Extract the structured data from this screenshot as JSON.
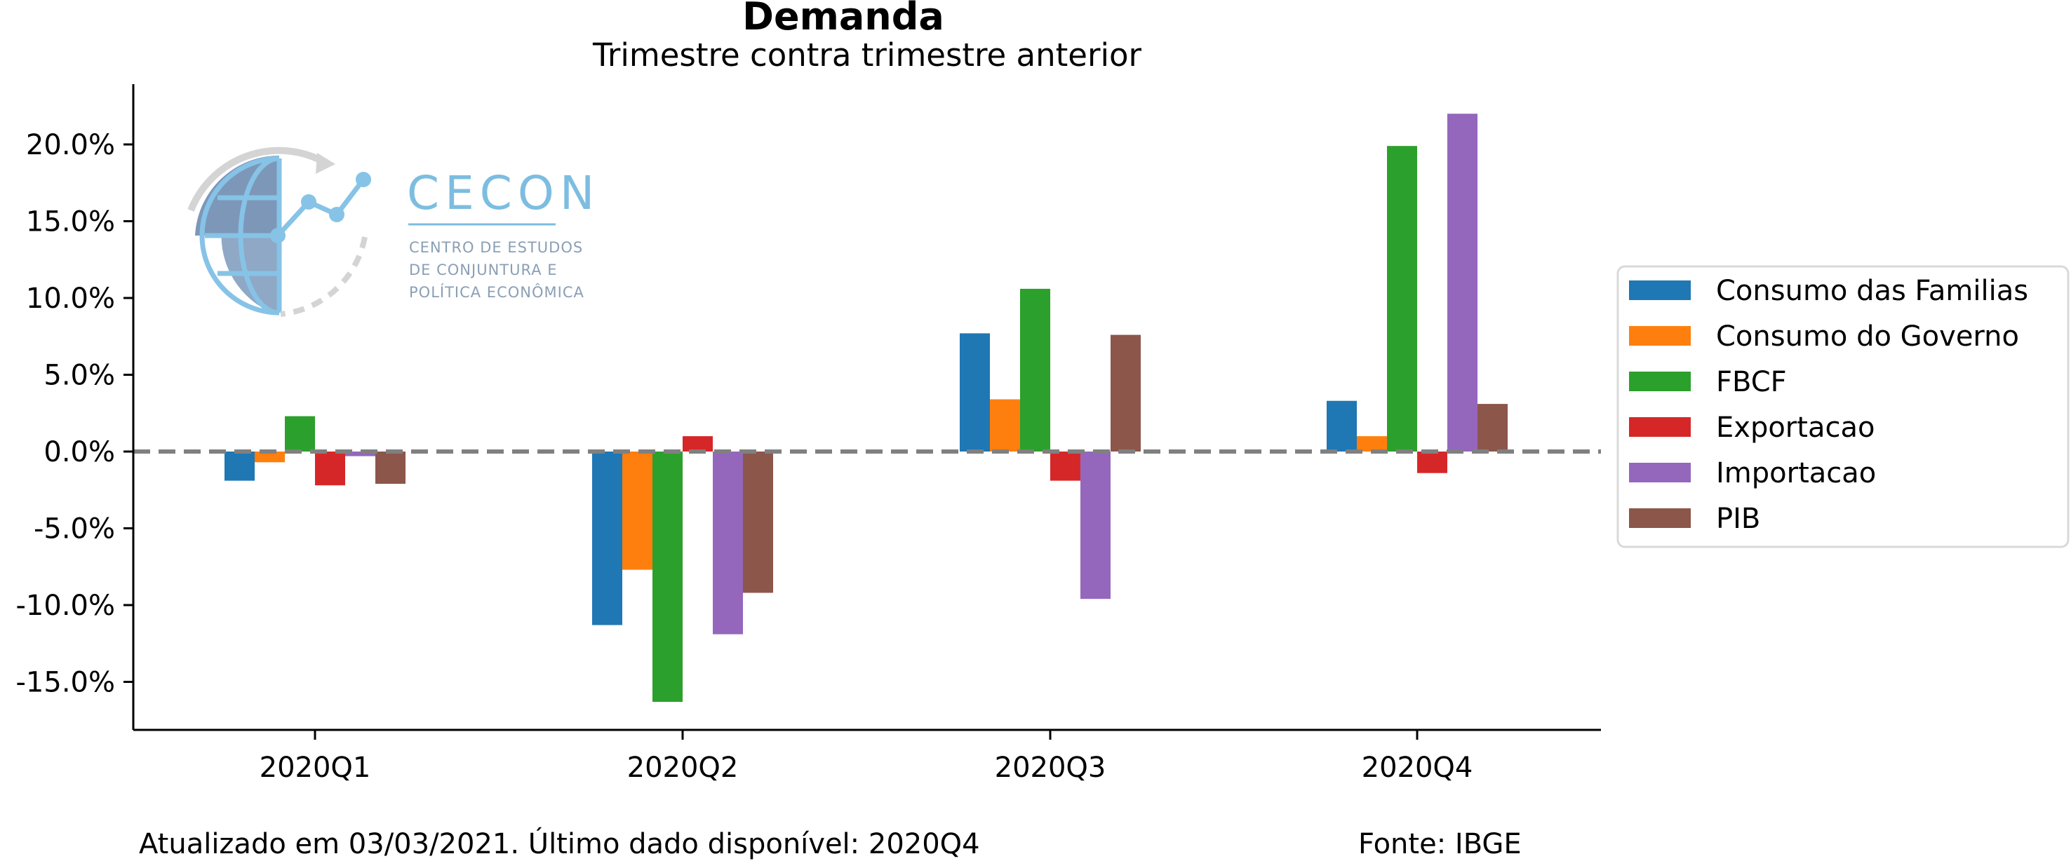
{
  "chart_data": {
    "type": "bar",
    "title": "Demanda",
    "subtitle": "Trimestre contra trimestre anterior",
    "categories": [
      "2020Q1",
      "2020Q2",
      "2020Q3",
      "2020Q4"
    ],
    "series": [
      {
        "name": "Consumo das Familias",
        "color": "#1f77b4",
        "values": [
          -1.9,
          -11.3,
          7.7,
          3.3
        ]
      },
      {
        "name": "Consumo do Governo",
        "color": "#ff7f0e",
        "values": [
          -0.7,
          -7.7,
          3.4,
          1.0
        ]
      },
      {
        "name": "FBCF",
        "color": "#2ca02c",
        "values": [
          2.3,
          -16.3,
          10.6,
          19.9
        ]
      },
      {
        "name": "Exportacao",
        "color": "#d62728",
        "values": [
          -2.2,
          1.0,
          -1.9,
          -1.4
        ]
      },
      {
        "name": "Importacao",
        "color": "#9467bd",
        "values": [
          -0.3,
          -11.9,
          -9.6,
          22.0
        ]
      },
      {
        "name": "PIB",
        "color": "#8c564b",
        "values": [
          -2.1,
          -9.2,
          7.6,
          3.1
        ]
      }
    ],
    "ylim": [
      -18.0,
      24.0
    ],
    "yticks": [
      -15,
      -10,
      -5,
      0,
      5,
      10,
      15,
      20
    ],
    "ytick_labels": [
      "-15.0%",
      "-10.0%",
      "-5.0%",
      "0.0%",
      "5.0%",
      "10.0%",
      "15.0%",
      "20.0%"
    ],
    "zero_line": {
      "style": "dashed",
      "color": "#808080"
    },
    "legend_position": "right",
    "grid": false
  },
  "footer": {
    "updated": "Atualizado em 03/03/2021. Último dado disponível: 2020Q4",
    "source": "Fonte: IBGE"
  },
  "logo": {
    "name": "CECON",
    "line1": "CENTRO DE ESTUDOS",
    "line2": "DE CONJUNTURA E",
    "line3": "POLÍTICA ECONÔMICA"
  }
}
